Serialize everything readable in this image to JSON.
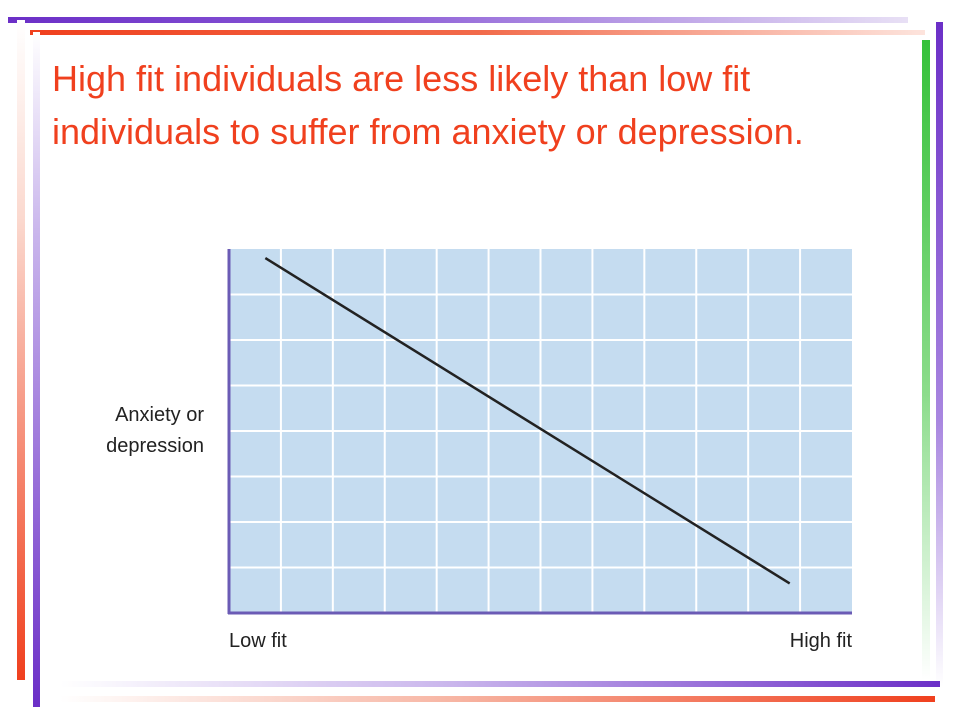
{
  "slide": {
    "title": "High fit individuals are less likely than low fit individuals to suffer from anxiety or depression."
  },
  "colors": {
    "title": "#f0401e",
    "plot_background": "#c5dcf0",
    "grid": "#ffffff",
    "axis": "#6b5bb5",
    "line": "#222222"
  },
  "chart_data": {
    "type": "line",
    "title": "",
    "xlabel": "",
    "ylabel_lines": [
      "Anxiety or",
      "depression"
    ],
    "x_tick_labels": {
      "start": "Low fit",
      "end": "High fit"
    },
    "xlim": [
      0,
      12
    ],
    "ylim": [
      0,
      8
    ],
    "grid": true,
    "legend": "none",
    "series": [
      {
        "x": [
          0.7,
          10.8
        ],
        "y": [
          7.8,
          0.65
        ]
      }
    ]
  }
}
